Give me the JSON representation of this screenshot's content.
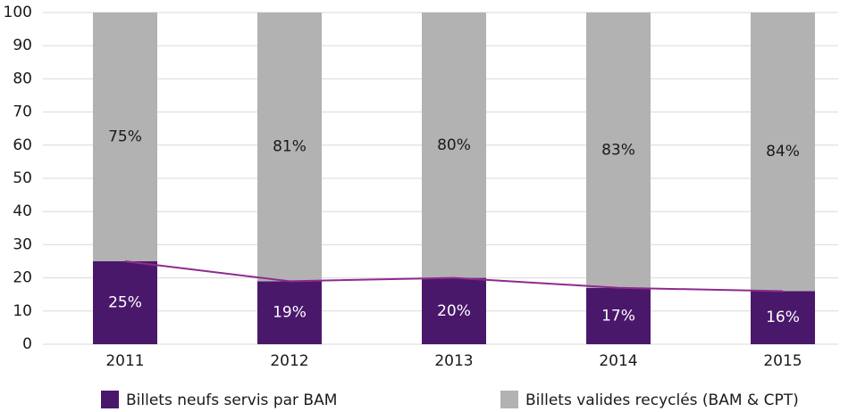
{
  "chart_data": {
    "type": "stacked_bar",
    "categories": [
      "2011",
      "2012",
      "2013",
      "2014",
      "2015"
    ],
    "series": [
      {
        "name": "Billets neufs servis par BAM",
        "color": "#4a186b",
        "values": [
          25,
          19,
          20,
          17,
          16
        ],
        "value_labels": [
          "25%",
          "19%",
          "20%",
          "17%",
          "16%"
        ],
        "line_color": "#8e2a8e"
      },
      {
        "name": "Billets valides recyclés (BAM & CPT)",
        "color": "#b2b2b2",
        "values": [
          75,
          81,
          80,
          83,
          84
        ],
        "value_labels": [
          "75%",
          "81%",
          "80%",
          "83%",
          "84%"
        ]
      }
    ],
    "ylim": [
      0,
      100
    ],
    "yticks": [
      0,
      10,
      20,
      30,
      40,
      50,
      60,
      70,
      80,
      90,
      100
    ],
    "grid": true,
    "legend": "bottom"
  }
}
